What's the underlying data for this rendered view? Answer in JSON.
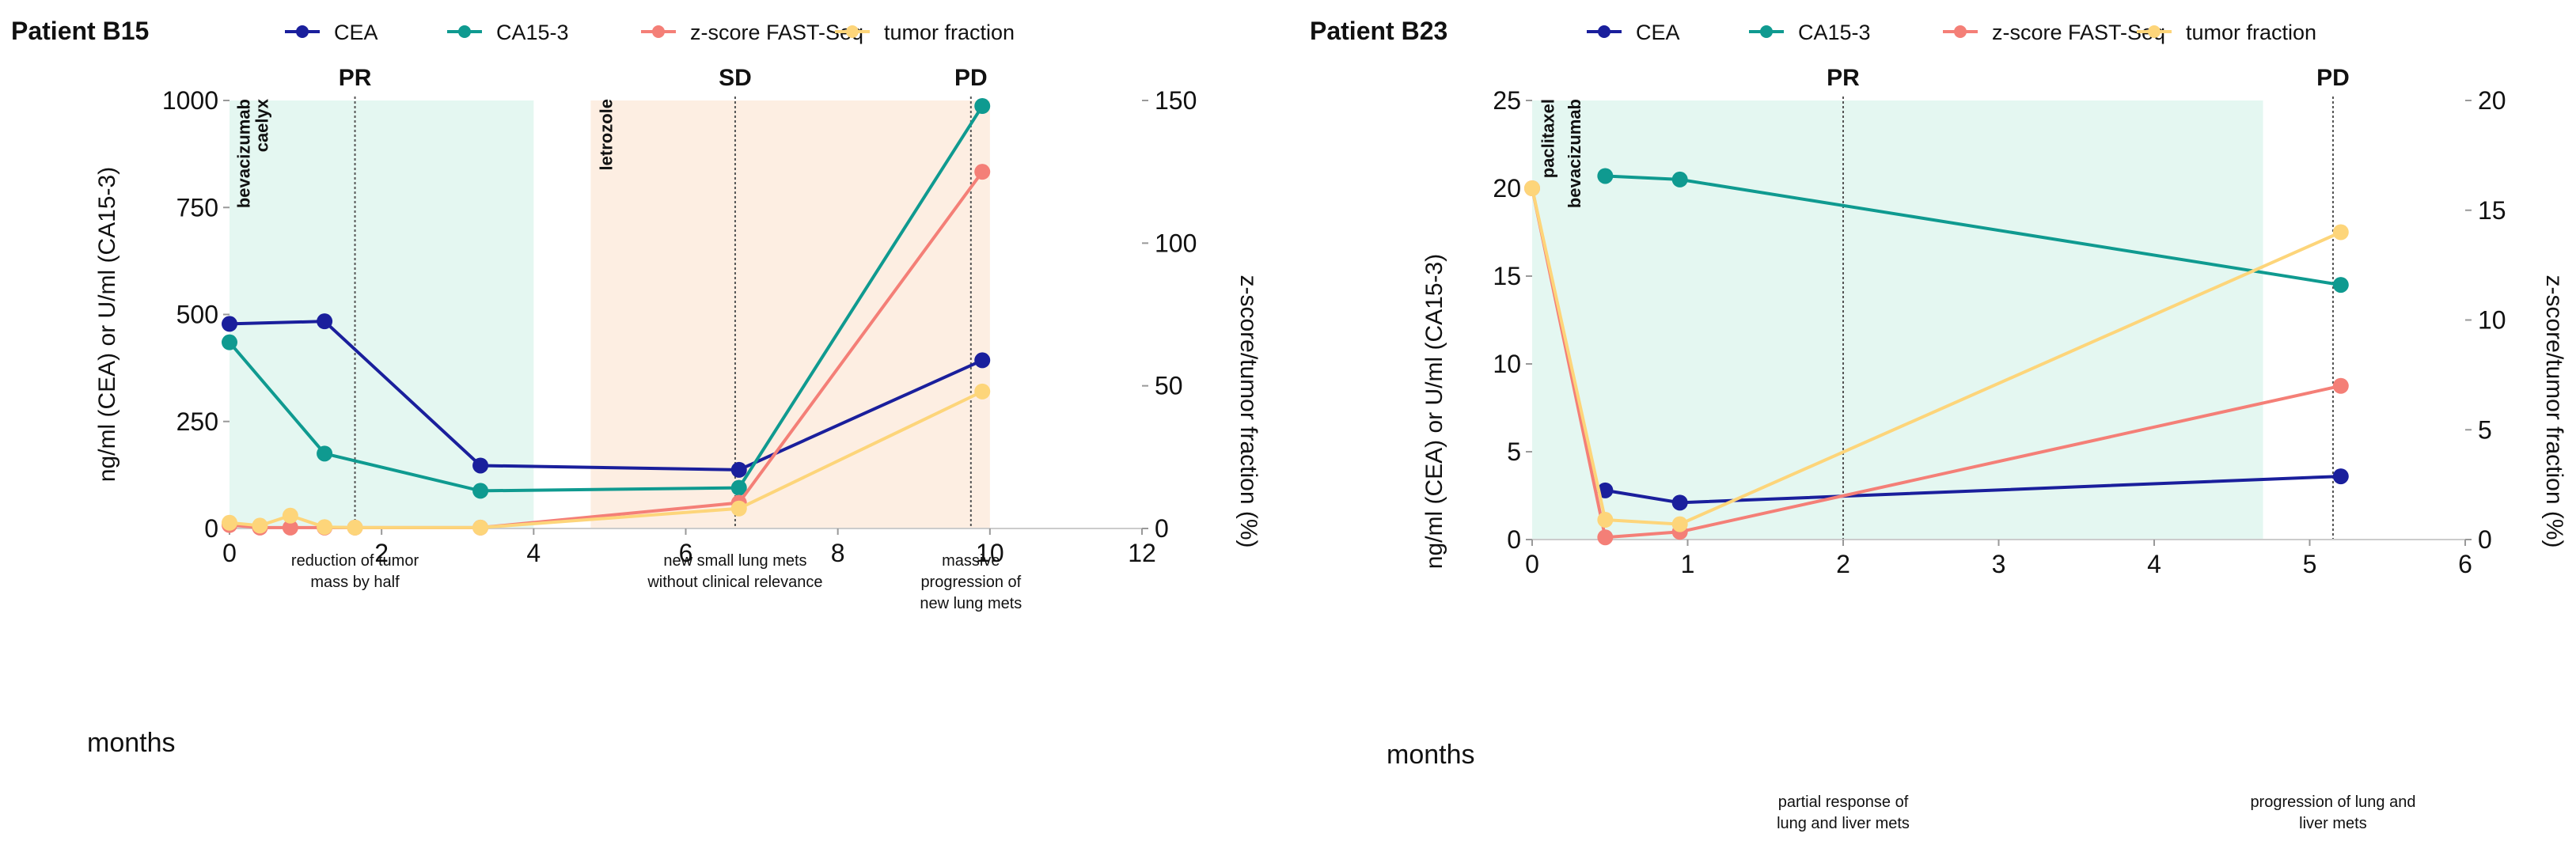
{
  "chart_data": [
    {
      "type": "line",
      "title": "Patient B15",
      "xlabel": "months",
      "ylabel": "ng/ml (CEA) or U/ml (CA15-3)",
      "y2label": "z-score/tumor fraction   (%)",
      "xlim": [
        0,
        12
      ],
      "xticks": [
        "0",
        "2",
        "4",
        "6",
        "8",
        "10",
        "12"
      ],
      "ylim": [
        0,
        1000
      ],
      "yticks": [
        "0",
        "250",
        "500",
        "750",
        "1000"
      ],
      "y2lim": [
        0,
        150
      ],
      "y2ticks": [
        "0",
        "50",
        "100",
        "150"
      ],
      "legend_position": "top",
      "shaded_regions": [
        {
          "from": 0,
          "to": 4,
          "color": "#e4f7f1"
        },
        {
          "from": 4.75,
          "to": 10,
          "color": "#fdeee2"
        }
      ],
      "phase_markers": [
        {
          "x": 1.65,
          "label": "PR"
        },
        {
          "x": 6.65,
          "label": "SD"
        },
        {
          "x": 9.75,
          "label": "PD"
        }
      ],
      "treatments": [
        {
          "x": 0.18,
          "label": "bevacizumab"
        },
        {
          "x": 0.42,
          "label": "caelyx"
        },
        {
          "x": 4.95,
          "label": "letrozole"
        }
      ],
      "annotations": [
        {
          "x": 1.65,
          "lines": [
            "reduction of tumor",
            "mass by half"
          ]
        },
        {
          "x": 6.65,
          "lines": [
            "new small lung mets",
            "without clinical relevance"
          ]
        },
        {
          "x": 9.75,
          "lines": [
            "massive",
            "progression of",
            "new lung mets"
          ]
        }
      ],
      "series": [
        {
          "name": "CEA",
          "axis": "left",
          "color": "#1a1f9c",
          "x": [
            0,
            1.25,
            3.3,
            6.7,
            9.9
          ],
          "y": [
            478,
            484,
            147,
            137,
            393
          ]
        },
        {
          "name": "CA15-3",
          "axis": "left",
          "color": "#0f9a90",
          "x": [
            0,
            1.25,
            3.3,
            6.7,
            9.9
          ],
          "y": [
            435,
            175,
            88,
            95,
            987
          ]
        },
        {
          "name": "z-score FAST-Seq",
          "axis": "right",
          "color": "#f47f77",
          "x": [
            0,
            0.4,
            0.8,
            1.25,
            1.65,
            3.3,
            6.7,
            9.9
          ],
          "y": [
            1.2,
            0.3,
            0.3,
            0.3,
            0.3,
            0.3,
            9,
            125
          ]
        },
        {
          "name": "tumor fraction",
          "axis": "right",
          "color": "#fdd57a",
          "x": [
            0,
            0.4,
            0.8,
            1.25,
            1.65,
            3.3,
            6.7,
            9.9
          ],
          "y": [
            2,
            1,
            4.5,
            0.5,
            0.3,
            0.3,
            7,
            48
          ]
        }
      ]
    },
    {
      "type": "line",
      "title": "Patient B23",
      "xlabel": "months",
      "ylabel": "ng/ml (CEA) or U/ml (CA15-3)",
      "y2label": "z-score/tumor fraction   (%)",
      "xlim": [
        0,
        6
      ],
      "xticks": [
        "0",
        "1",
        "2",
        "3",
        "4",
        "5",
        "6"
      ],
      "ylim": [
        0,
        25
      ],
      "yticks": [
        "0",
        "5",
        "10",
        "15",
        "20",
        "25"
      ],
      "y2lim": [
        0,
        20
      ],
      "y2ticks": [
        "0",
        "5",
        "10",
        "15",
        "20"
      ],
      "legend_position": "top",
      "shaded_regions": [
        {
          "from": 0,
          "to": 4.7,
          "color": "#e4f7f1"
        }
      ],
      "phase_markers": [
        {
          "x": 2,
          "label": "PR"
        },
        {
          "x": 5.15,
          "label": "PD"
        }
      ],
      "treatments": [
        {
          "x": 0.1,
          "label": "paclitaxel"
        },
        {
          "x": 0.27,
          "label": "bevacizumab"
        }
      ],
      "annotations": [
        {
          "x": 2,
          "lines": [
            "partial response of",
            "lung and liver mets"
          ]
        },
        {
          "x": 5.15,
          "lines": [
            "progression of lung and",
            "liver mets"
          ]
        }
      ],
      "series": [
        {
          "name": "CEA",
          "axis": "left",
          "color": "#1a1f9c",
          "x": [
            0.47,
            0.95,
            5.2
          ],
          "y": [
            2.8,
            2.1,
            3.6
          ]
        },
        {
          "name": "CA15-3",
          "axis": "left",
          "color": "#0f9a90",
          "x": [
            0.47,
            0.95,
            5.2
          ],
          "y": [
            20.7,
            20.5,
            14.5
          ]
        },
        {
          "name": "z-score FAST-Seq",
          "axis": "right",
          "color": "#f47f77",
          "x": [
            0,
            0.47,
            0.95,
            5.2
          ],
          "y": [
            16,
            0.1,
            0.35,
            7
          ]
        },
        {
          "name": "tumor fraction",
          "axis": "right",
          "color": "#fdd57a",
          "x": [
            0,
            0.47,
            0.95,
            5.2
          ],
          "y": [
            16,
            0.9,
            0.7,
            14
          ]
        }
      ]
    }
  ]
}
